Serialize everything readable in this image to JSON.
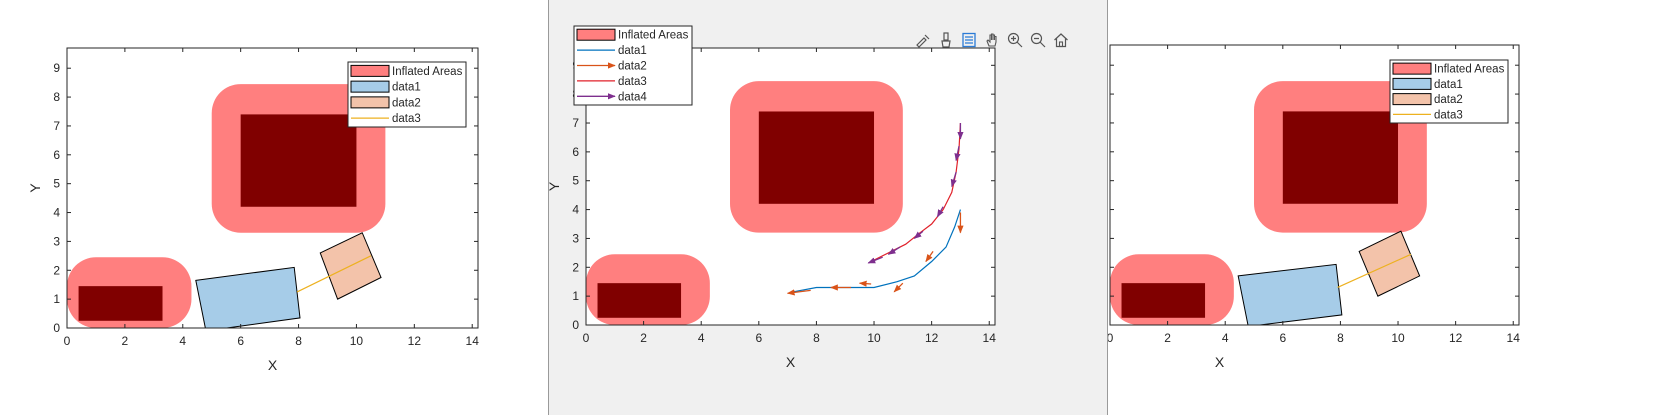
{
  "chart_data": [
    {
      "type": "polygon-map",
      "xlabel": "X",
      "ylabel": "Y",
      "xlim": [
        0,
        14.2
      ],
      "ylim": [
        0,
        9.7
      ],
      "xticks": [
        0,
        2,
        4,
        6,
        8,
        10,
        12,
        14
      ],
      "yticks": [
        0,
        1,
        2,
        3,
        4,
        5,
        6,
        7,
        8,
        9
      ],
      "legend_position": "top-right",
      "colors": {
        "inflated": "#ff7f7f",
        "obstacle": "#800000",
        "data1": "#a6cce8",
        "data2": "#f3c3aa",
        "data3": "#edb120"
      },
      "legend": [
        {
          "label": "Inflated Areas",
          "kind": "patch",
          "fill": "#ff7f7f"
        },
        {
          "label": "data1",
          "kind": "patch",
          "fill": "#a6cce8"
        },
        {
          "label": "data2",
          "kind": "patch",
          "fill": "#f3c3aa"
        },
        {
          "label": "data3",
          "kind": "line",
          "color": "#edb120"
        }
      ],
      "inflated_areas": [
        {
          "x0": 0,
          "x1": 4.3,
          "y0": 0,
          "y1": 2.45,
          "radius": 1.0
        },
        {
          "x0": 5.0,
          "x1": 11.0,
          "y0": 3.3,
          "y1": 8.45,
          "radius": 1.0
        }
      ],
      "obstacles": [
        {
          "x0": 0.4,
          "x1": 3.3,
          "y0": 0.25,
          "y1": 1.45
        },
        {
          "x0": 6.0,
          "x1": 10.0,
          "y0": 4.2,
          "y1": 7.4
        }
      ],
      "vehicle": {
        "points": [
          [
            4.45,
            1.65
          ],
          [
            7.85,
            2.1
          ],
          [
            8.05,
            0.35
          ],
          [
            4.8,
            -0.1
          ]
        ]
      },
      "trailer": {
        "points": [
          [
            8.75,
            2.6
          ],
          [
            10.2,
            3.3
          ],
          [
            10.85,
            1.75
          ],
          [
            9.35,
            1.0
          ]
        ]
      },
      "hitch": {
        "points": [
          [
            7.95,
            1.25
          ],
          [
            10.5,
            2.5
          ]
        ]
      }
    },
    {
      "type": "line",
      "xlabel": "X",
      "ylabel": "Y",
      "xlim": [
        0,
        14.2
      ],
      "ylim": [
        0,
        9.6
      ],
      "xticks": [
        0,
        2,
        4,
        6,
        8,
        10,
        12,
        14
      ],
      "yticks": [
        0,
        1,
        2,
        3,
        4,
        5,
        6,
        7,
        8,
        9
      ],
      "legend_position": "top-left",
      "colors": {
        "inflated": "#ff7f7f",
        "obstacle": "#800000",
        "data1": "#0072bd",
        "data2": "#d95319",
        "data3": "#e0212a",
        "data4": "#7e2f8e"
      },
      "legend": [
        {
          "label": "Inflated Areas",
          "kind": "patch",
          "fill": "#ff7f7f"
        },
        {
          "label": "data1",
          "kind": "line",
          "color": "#0072bd"
        },
        {
          "label": "data2",
          "kind": "arrow",
          "color": "#d95319"
        },
        {
          "label": "data3",
          "kind": "line",
          "color": "#e0212a"
        },
        {
          "label": "data4",
          "kind": "arrow",
          "color": "#7e2f8e"
        }
      ],
      "inflated_areas": [
        {
          "x0": 0,
          "x1": 4.3,
          "y0": 0,
          "y1": 2.45,
          "radius": 1.0
        },
        {
          "x0": 5.0,
          "x1": 11.0,
          "y0": 3.2,
          "y1": 8.45,
          "radius": 1.0
        }
      ],
      "obstacles": [
        {
          "x0": 0.4,
          "x1": 3.3,
          "y0": 0.25,
          "y1": 1.45
        },
        {
          "x0": 6.0,
          "x1": 10.0,
          "y0": 4.2,
          "y1": 7.4
        }
      ],
      "series": [
        {
          "name": "data1",
          "kind": "line",
          "color": "#0072bd",
          "points": [
            [
              7.2,
              1.15
            ],
            [
              8.0,
              1.3
            ],
            [
              8.6,
              1.3
            ],
            [
              9.4,
              1.3
            ],
            [
              10.0,
              1.3
            ],
            [
              10.8,
              1.5
            ],
            [
              11.4,
              1.7
            ],
            [
              12.0,
              2.2
            ],
            [
              12.5,
              2.7
            ],
            [
              12.8,
              3.4
            ],
            [
              13.0,
              4.0
            ]
          ]
        },
        {
          "name": "data2",
          "kind": "arrows",
          "color": "#d95319",
          "arrows": [
            [
              [
                7.8,
                1.2
              ],
              [
                7.0,
                1.1
              ]
            ],
            [
              [
                9.2,
                1.3
              ],
              [
                8.5,
                1.3
              ]
            ],
            [
              [
                9.9,
                1.42
              ],
              [
                9.5,
                1.45
              ]
            ],
            [
              [
                11.0,
                1.45
              ],
              [
                10.7,
                1.15
              ]
            ],
            [
              [
                12.05,
                2.55
              ],
              [
                11.8,
                2.2
              ]
            ],
            [
              [
                13.0,
                3.9
              ],
              [
                13.0,
                3.2
              ]
            ]
          ]
        },
        {
          "name": "data3",
          "kind": "line",
          "color": "#e0212a",
          "points": [
            [
              9.9,
              2.2
            ],
            [
              10.5,
              2.5
            ],
            [
              11.1,
              2.8
            ],
            [
              11.6,
              3.2
            ],
            [
              12.0,
              3.5
            ],
            [
              12.4,
              4.0
            ],
            [
              12.7,
              4.6
            ],
            [
              12.85,
              5.3
            ],
            [
              12.95,
              6.1
            ],
            [
              13.0,
              7.0
            ]
          ]
        },
        {
          "name": "data4",
          "kind": "arrows",
          "color": "#7e2f8e",
          "arrows": [
            [
              [
                10.3,
                2.35
              ],
              [
                9.8,
                2.15
              ]
            ],
            [
              [
                10.9,
                2.7
              ],
              [
                10.5,
                2.45
              ]
            ],
            [
              [
                11.7,
                3.25
              ],
              [
                11.4,
                3.0
              ]
            ],
            [
              [
                12.4,
                4.1
              ],
              [
                12.2,
                3.75
              ]
            ],
            [
              [
                12.85,
                5.3
              ],
              [
                12.7,
                4.8
              ]
            ],
            [
              [
                12.95,
                6.2
              ],
              [
                12.85,
                5.7
              ]
            ],
            [
              [
                13.0,
                7.0
              ],
              [
                13.0,
                6.45
              ]
            ]
          ]
        }
      ]
    },
    {
      "type": "polygon-map",
      "xlabel": "X",
      "ylabel": "Y",
      "xlim": [
        0,
        14.2
      ],
      "ylim": [
        0,
        9.7
      ],
      "xticks": [
        0,
        2,
        4,
        6,
        8,
        10,
        12,
        14
      ],
      "yticks": [
        0,
        1,
        2,
        3,
        4,
        5,
        6,
        7,
        8,
        9
      ],
      "legend_position": "top-right",
      "colors": {
        "inflated": "#ff7f7f",
        "obstacle": "#800000",
        "data1": "#a6cce8",
        "data2": "#f3c3aa",
        "data3": "#edb120"
      },
      "legend": [
        {
          "label": "Inflated Areas",
          "kind": "patch",
          "fill": "#ff7f7f"
        },
        {
          "label": "data1",
          "kind": "patch",
          "fill": "#a6cce8"
        },
        {
          "label": "data2",
          "kind": "patch",
          "fill": "#f3c3aa"
        },
        {
          "label": "data3",
          "kind": "line",
          "color": "#edb120"
        }
      ],
      "inflated_areas": [
        {
          "x0": 0,
          "x1": 4.3,
          "y0": 0,
          "y1": 2.45,
          "radius": 1.0
        },
        {
          "x0": 5.0,
          "x1": 11.0,
          "y0": 3.2,
          "y1": 8.45,
          "radius": 1.0
        }
      ],
      "obstacles": [
        {
          "x0": 0.4,
          "x1": 3.3,
          "y0": 0.25,
          "y1": 1.45
        },
        {
          "x0": 6.0,
          "x1": 10.0,
          "y0": 4.2,
          "y1": 7.4
        }
      ],
      "vehicle": {
        "points": [
          [
            4.45,
            1.7
          ],
          [
            7.85,
            2.1
          ],
          [
            8.05,
            0.35
          ],
          [
            4.8,
            -0.05
          ]
        ]
      },
      "trailer": {
        "points": [
          [
            8.65,
            2.55
          ],
          [
            10.1,
            3.25
          ],
          [
            10.75,
            1.7
          ],
          [
            9.3,
            1.0
          ]
        ]
      },
      "hitch": {
        "points": [
          [
            7.9,
            1.3
          ],
          [
            10.45,
            2.45
          ]
        ]
      }
    }
  ]
}
